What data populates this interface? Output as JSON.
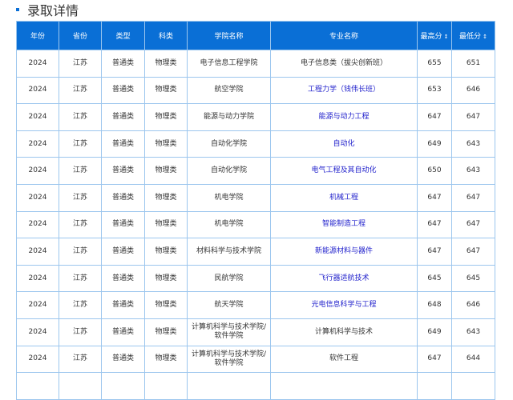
{
  "title": "录取详情",
  "accent": "#0a6fd6",
  "columns": [
    "年份",
    "省份",
    "类型",
    "科类",
    "学院名称",
    "专业名称",
    "最高分",
    "最低分"
  ],
  "rows": [
    [
      "2024",
      "江苏",
      "普通类",
      "物理类",
      "电子信息工程学院",
      "电子信息类（拔尖创新班）",
      "655",
      "651",
      false
    ],
    [
      "2024",
      "江苏",
      "普通类",
      "物理类",
      "航空学院",
      "工程力学（钱伟长班）",
      "653",
      "646",
      true
    ],
    [
      "2024",
      "江苏",
      "普通类",
      "物理类",
      "能源与动力学院",
      "能源与动力工程",
      "647",
      "647",
      true
    ],
    [
      "2024",
      "江苏",
      "普通类",
      "物理类",
      "自动化学院",
      "自动化",
      "649",
      "643",
      true
    ],
    [
      "2024",
      "江苏",
      "普通类",
      "物理类",
      "自动化学院",
      "电气工程及其自动化",
      "650",
      "643",
      true
    ],
    [
      "2024",
      "江苏",
      "普通类",
      "物理类",
      "机电学院",
      "机械工程",
      "647",
      "647",
      true
    ],
    [
      "2024",
      "江苏",
      "普通类",
      "物理类",
      "机电学院",
      "智能制造工程",
      "647",
      "647",
      true
    ],
    [
      "2024",
      "江苏",
      "普通类",
      "物理类",
      "材料科学与技术学院",
      "新能源材料与器件",
      "647",
      "647",
      true
    ],
    [
      "2024",
      "江苏",
      "普通类",
      "物理类",
      "民航学院",
      "飞行器适航技术",
      "645",
      "645",
      true
    ],
    [
      "2024",
      "江苏",
      "普通类",
      "物理类",
      "航天学院",
      "光电信息科学与工程",
      "648",
      "646",
      true
    ],
    [
      "2024",
      "江苏",
      "普通类",
      "物理类",
      "计算机科学与技术学院/软件学院",
      "计算机科学与技术",
      "649",
      "643",
      false
    ],
    [
      "2024",
      "江苏",
      "普通类",
      "物理类",
      "计算机科学与技术学院/软件学院",
      "软件工程",
      "647",
      "644",
      false
    ]
  ]
}
